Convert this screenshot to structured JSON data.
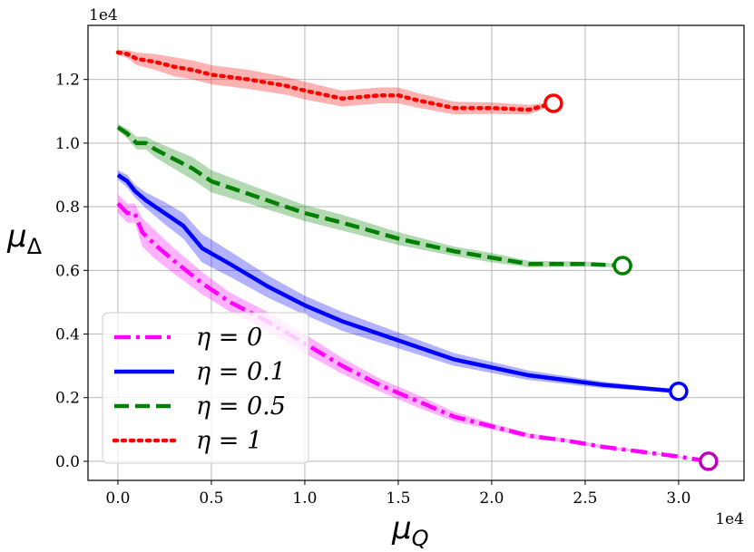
{
  "chart_data": {
    "type": "line",
    "title": "",
    "xlabel": "μ_Q",
    "ylabel": "μ_Δ",
    "x_multiplier": "1e4",
    "y_multiplier": "1e4",
    "xlim": [
      -1600,
      33500
    ],
    "ylim": [
      -600,
      13700
    ],
    "xticks": [
      0,
      5000,
      10000,
      15000,
      20000,
      25000,
      30000
    ],
    "xtick_labels": [
      "0.0",
      "0.5",
      "1.0",
      "1.5",
      "2.0",
      "2.5",
      "3.0"
    ],
    "yticks": [
      0,
      2000,
      4000,
      6000,
      8000,
      10000,
      12000
    ],
    "ytick_labels": [
      "0.0",
      "0.2",
      "0.4",
      "0.6",
      "0.8",
      "1.0",
      "1.2"
    ],
    "grid": true,
    "legend_position": "lower-left",
    "series": [
      {
        "name": "η = 0",
        "color": "#ff00ff",
        "band_color": "#ff00ff",
        "dash": "dashdot",
        "marker_color": "#bf00bf",
        "x": [
          0,
          500,
          900,
          1300,
          2000,
          3000,
          4500,
          6000,
          8000,
          10000,
          12000,
          14000,
          16000,
          18000,
          20000,
          22000,
          24000,
          26000,
          28000,
          30000,
          31600
        ],
        "y": [
          8100,
          7800,
          7800,
          7200,
          6800,
          6300,
          5600,
          5000,
          4400,
          3700,
          3000,
          2400,
          1900,
          1400,
          1100,
          800,
          650,
          450,
          300,
          150,
          0
        ],
        "band": [
          300,
          300,
          300,
          450,
          450,
          400,
          350,
          300,
          300,
          300,
          250,
          200,
          200,
          150,
          100,
          80,
          60,
          50,
          30,
          20,
          0
        ]
      },
      {
        "name": "η = 0.1",
        "color": "#0000ff",
        "band_color": "#0000ff",
        "dash": "solid",
        "marker_color": "#0000ff",
        "x": [
          0,
          500,
          900,
          1500,
          2000,
          2500,
          3500,
          4500,
          6000,
          8000,
          10000,
          12000,
          15000,
          18000,
          22000,
          26000,
          30000
        ],
        "y": [
          9000,
          8800,
          8500,
          8200,
          8000,
          7800,
          7400,
          6700,
          6200,
          5500,
          4900,
          4400,
          3800,
          3200,
          2700,
          2400,
          2200
        ],
        "band": [
          150,
          200,
          200,
          250,
          300,
          350,
          400,
          450,
          400,
          350,
          300,
          300,
          250,
          200,
          150,
          100,
          50
        ]
      },
      {
        "name": "η = 0.5",
        "color": "#008000",
        "band_color": "#008000",
        "dash": "dashed",
        "marker_color": "#008000",
        "x": [
          0,
          500,
          1000,
          1500,
          2000,
          3000,
          4000,
          5000,
          7000,
          10000,
          12000,
          15000,
          18000,
          20000,
          22000,
          25000,
          27000
        ],
        "y": [
          10500,
          10300,
          10000,
          10000,
          9800,
          9500,
          9200,
          8800,
          8400,
          7800,
          7500,
          7000,
          6600,
          6400,
          6200,
          6200,
          6150
        ],
        "band": [
          100,
          150,
          200,
          200,
          250,
          300,
          350,
          350,
          300,
          250,
          250,
          200,
          150,
          150,
          100,
          80,
          50
        ]
      },
      {
        "name": "η = 1",
        "color": "#ff0000",
        "band_color": "#ff0000",
        "dash": "dotted",
        "marker_color": "#ff0000",
        "x": [
          0,
          500,
          1000,
          2000,
          3000,
          4000,
          5000,
          7000,
          9000,
          10000,
          12000,
          14000,
          15000,
          16000,
          18000,
          20000,
          22000,
          23300
        ],
        "y": [
          12850,
          12800,
          12650,
          12550,
          12400,
          12300,
          12150,
          12000,
          11800,
          11650,
          11400,
          11500,
          11500,
          11350,
          11100,
          11100,
          11050,
          11250
        ],
        "band": [
          80,
          120,
          200,
          250,
          300,
          300,
          300,
          300,
          280,
          280,
          250,
          250,
          250,
          230,
          200,
          180,
          150,
          50
        ]
      }
    ]
  }
}
